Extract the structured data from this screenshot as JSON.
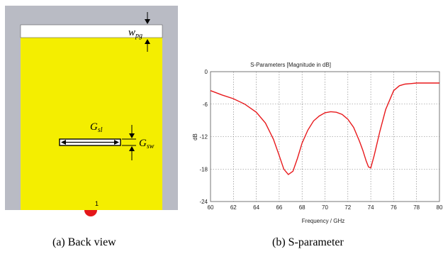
{
  "antenna": {
    "label_wpg": {
      "base": "w",
      "sub": "pg"
    },
    "label_gsl": {
      "base": "G",
      "sub": "sl"
    },
    "label_gsw": {
      "base": "G",
      "sub": "sw"
    },
    "port_number": "1",
    "colors": {
      "substrate": "#f4ee00",
      "background": "#b9bbc4",
      "ground_strip": "#ffffff",
      "port": "#e4161a"
    }
  },
  "captions": {
    "a": "(a) Back view",
    "b": "(b) S-parameter"
  },
  "chart_data": {
    "type": "line",
    "title": "S-Parameters [Magnitude in dB]",
    "xlabel": "Frequency / GHz",
    "ylabel": "dB",
    "xlim": [
      60,
      80
    ],
    "ylim": [
      -24,
      0
    ],
    "xticks": [
      "60",
      "62",
      "64",
      "66",
      "68",
      "70",
      "72",
      "74",
      "76",
      "78",
      "80"
    ],
    "yticks": [
      "0",
      "-6",
      "-12",
      "-18",
      "-24"
    ],
    "grid": true,
    "series": [
      {
        "color": "#e8191c",
        "x": [
          60,
          61,
          62,
          63,
          64,
          64.8,
          65.5,
          66,
          66.4,
          66.8,
          67.2,
          67.6,
          68,
          68.5,
          69,
          69.5,
          70,
          70.5,
          71,
          71.5,
          72,
          72.5,
          73,
          73.3,
          73.6,
          73.8,
          74,
          74.3,
          74.8,
          75.3,
          76,
          76.5,
          77,
          77.5,
          78,
          79,
          80
        ],
        "y": [
          -3.5,
          -4.3,
          -5.0,
          -6.0,
          -7.5,
          -9.5,
          -12.5,
          -15.5,
          -18.0,
          -19.0,
          -18.4,
          -16.0,
          -13.2,
          -10.8,
          -9.1,
          -8.2,
          -7.6,
          -7.4,
          -7.5,
          -7.9,
          -8.8,
          -10.3,
          -12.8,
          -14.5,
          -16.5,
          -17.6,
          -17.8,
          -15.5,
          -11.0,
          -7.0,
          -3.5,
          -2.6,
          -2.3,
          -2.2,
          -2.1,
          -2.1,
          -2.1
        ]
      }
    ]
  }
}
